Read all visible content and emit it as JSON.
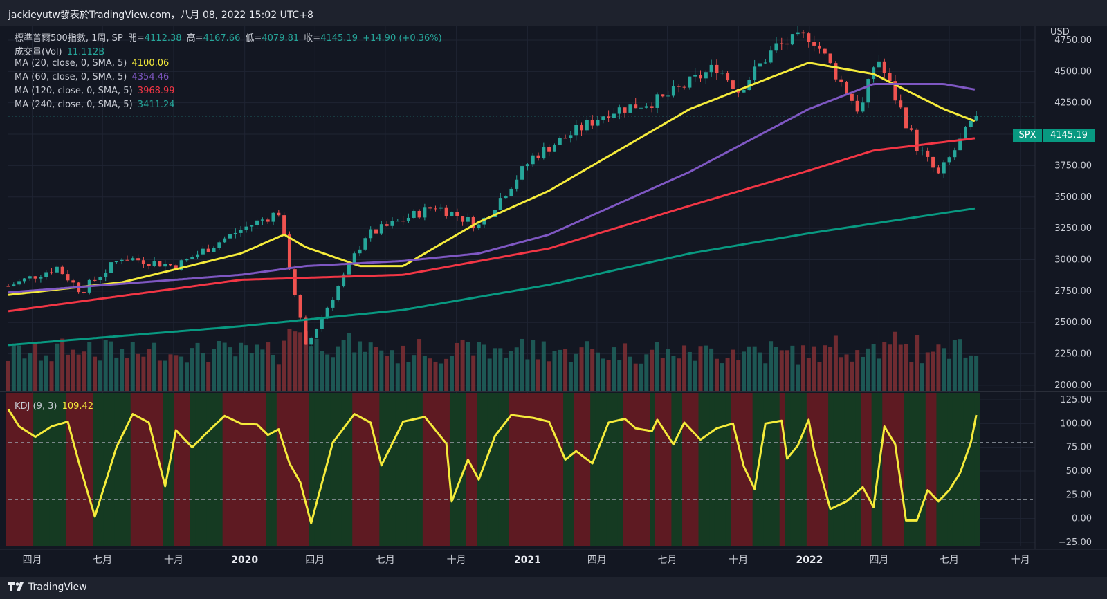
{
  "header": {
    "title": "jackieyutw發表於TradingView.com，八月 08, 2022 15:02 UTC+8"
  },
  "legend": {
    "symbol": "標準普爾500指數, 1周, SP",
    "open_label": "開=",
    "open": "4112.38",
    "high_label": "高=",
    "high": "4167.66",
    "low_label": "低=",
    "low": "4079.81",
    "close_label": "收=",
    "close": "4145.19",
    "change": "+14.90 (+0.36%)",
    "vol_label": "成交量(Vol)",
    "vol": "11.112B",
    "ma20_label": "MA (20, close, 0, SMA, 5)",
    "ma20": "4100.06",
    "ma60_label": "MA (60, close, 0, SMA, 5)",
    "ma60": "4354.46",
    "ma120_label": "MA (120, close, 0, SMA, 5)",
    "ma120": "3968.99",
    "ma240_label": "MA (240, close, 0, SMA, 5)",
    "ma240": "3411.24"
  },
  "kdj_legend": {
    "label": "KDJ (9, 3)",
    "value": "109.42"
  },
  "price_axis": {
    "currency": "USD",
    "ticks": [
      "4750.00",
      "4500.00",
      "4250.00",
      "4000.00",
      "3750.00",
      "3500.00",
      "3250.00",
      "3000.00",
      "2750.00",
      "2500.00",
      "2250.00",
      "2000.00"
    ],
    "symbol_tag": "SPX",
    "last_price": "4145.19"
  },
  "kdj_axis": {
    "ticks": [
      "125.00",
      "100.00",
      "75.00",
      "50.00",
      "25.00",
      "0.00",
      "−25.00"
    ]
  },
  "time_axis": {
    "labels": [
      "四月",
      "七月",
      "十月",
      "2020",
      "四月",
      "七月",
      "十月",
      "2021",
      "四月",
      "七月",
      "十月",
      "2022",
      "四月",
      "七月",
      "十月"
    ]
  },
  "footer": {
    "brand": "TradingView"
  },
  "colors": {
    "background": "#131722",
    "up": "#26a69a",
    "down": "#ef5350",
    "ma20": "#f5eb3b",
    "ma60": "#7e57c2",
    "ma120": "#f23645",
    "ma240": "#089981",
    "kdj": "#f5eb3b",
    "kdj_bg_up": "#153a22",
    "kdj_bg_down": "#5e1a22"
  },
  "chart_data": [
    {
      "type": "candlestick",
      "title": "標準普爾500指數, 1周, SP",
      "ylabel": "USD",
      "ylim": [
        1950,
        4860
      ],
      "x_range": [
        "2019-03-01",
        "2022-10-20"
      ],
      "x_ticks": [
        "四月",
        "七月",
        "十月",
        "2020",
        "四月",
        "七月",
        "十月",
        "2021",
        "四月",
        "七月",
        "十月",
        "2022",
        "四月",
        "七月",
        "十月"
      ],
      "anchors": {
        "dates": [
          "2019-03-01",
          "2019-05-03",
          "2019-06-03",
          "2019-07-26",
          "2019-10-04",
          "2019-12-27",
          "2020-02-14",
          "2020-03-20",
          "2020-06-05",
          "2020-09-04",
          "2020-10-30",
          "2021-01-08",
          "2021-04-16",
          "2021-06-25",
          "2021-09-03",
          "2021-10-01",
          "2021-11-19",
          "2022-01-03",
          "2022-03-08",
          "2022-03-29",
          "2022-05-20",
          "2022-06-17",
          "2022-08-05"
        ],
        "close": [
          2790,
          2940,
          2750,
          3020,
          2950,
          3240,
          3380,
          2300,
          3190,
          3430,
          3270,
          3820,
          4180,
          4280,
          4540,
          4350,
          4700,
          4790,
          4170,
          4630,
          3900,
          3670,
          4145
        ]
      },
      "series": [
        {
          "name": "MA (20, close, 0, SMA, 5)",
          "dates": [
            "2019-03-01",
            "2019-07-26",
            "2019-12-27",
            "2020-02-21",
            "2020-03-20",
            "2020-05-29",
            "2020-07-24",
            "2020-10-30",
            "2021-01-29",
            "2021-07-30",
            "2021-12-31",
            "2022-03-25",
            "2022-06-24",
            "2022-08-05"
          ],
          "values": [
            2720,
            2820,
            3050,
            3200,
            3100,
            2950,
            2950,
            3300,
            3550,
            4200,
            4570,
            4480,
            4200,
            4100
          ]
        },
        {
          "name": "MA (60, close, 0, SMA, 5)",
          "dates": [
            "2019-03-01",
            "2019-12-27",
            "2020-03-20",
            "2020-07-24",
            "2020-10-30",
            "2021-01-29",
            "2021-07-30",
            "2021-12-31",
            "2022-03-25",
            "2022-06-24",
            "2022-08-05"
          ],
          "values": [
            2740,
            2880,
            2950,
            2990,
            3050,
            3200,
            3700,
            4200,
            4400,
            4400,
            4354
          ]
        },
        {
          "name": "MA (120, close, 0, SMA, 5)",
          "dates": [
            "2019-03-01",
            "2019-12-27",
            "2020-07-24",
            "2021-01-29",
            "2021-07-30",
            "2021-12-31",
            "2022-03-25",
            "2022-08-05"
          ],
          "values": [
            2590,
            2840,
            2880,
            3090,
            3430,
            3710,
            3870,
            3969
          ]
        },
        {
          "name": "MA (240, close, 0, SMA, 5)",
          "dates": [
            "2019-03-01",
            "2019-12-27",
            "2020-07-24",
            "2021-01-29",
            "2021-07-30",
            "2021-12-31",
            "2022-08-05"
          ],
          "values": [
            2320,
            2470,
            2600,
            2800,
            3050,
            3210,
            3411
          ]
        }
      ],
      "volume": {
        "name": "成交量(Vol)",
        "last": "11.112B",
        "relative_level_range": [
          0.4,
          1.0
        ]
      }
    },
    {
      "type": "line",
      "title": "KDJ (9, 3)",
      "ylim": [
        -25,
        125
      ],
      "reference_lines": [
        20,
        80
      ],
      "series": [
        {
          "name": "KDJ (9, 3)",
          "dates": [
            "2019-03-01",
            "2019-03-15",
            "2019-04-05",
            "2019-04-26",
            "2019-05-17",
            "2019-05-31",
            "2019-06-21",
            "2019-07-19",
            "2019-08-09",
            "2019-08-30",
            "2019-09-20",
            "2019-10-04",
            "2019-10-25",
            "2019-11-15",
            "2019-12-06",
            "2019-12-27",
            "2020-01-17",
            "2020-01-31",
            "2020-02-14",
            "2020-02-28",
            "2020-03-13",
            "2020-03-27",
            "2020-04-24",
            "2020-05-22",
            "2020-06-12",
            "2020-06-26",
            "2020-07-24",
            "2020-08-21",
            "2020-09-18",
            "2020-09-25",
            "2020-10-16",
            "2020-10-30",
            "2020-11-20",
            "2020-12-11",
            "2021-01-08",
            "2021-01-29",
            "2021-02-19",
            "2021-03-05",
            "2021-03-26",
            "2021-04-16",
            "2021-05-07",
            "2021-05-21",
            "2021-06-11",
            "2021-06-18",
            "2021-07-09",
            "2021-07-23",
            "2021-08-13",
            "2021-09-03",
            "2021-09-24",
            "2021-10-08",
            "2021-10-22",
            "2021-11-05",
            "2021-11-26",
            "2021-12-03",
            "2021-12-17",
            "2021-12-31",
            "2022-01-07",
            "2022-01-28",
            "2022-02-18",
            "2022-03-11",
            "2022-03-25",
            "2022-04-08",
            "2022-04-22",
            "2022-05-06",
            "2022-05-20",
            "2022-06-03",
            "2022-06-17",
            "2022-07-01",
            "2022-07-15",
            "2022-07-29",
            "2022-08-05"
          ],
          "values": [
            115,
            97,
            86,
            97,
            102,
            60,
            2,
            75,
            110,
            101,
            34,
            93,
            75,
            92,
            108,
            100,
            99,
            88,
            94,
            58,
            38,
            -5,
            80,
            110,
            101,
            56,
            102,
            107,
            79,
            18,
            62,
            41,
            87,
            109,
            106,
            102,
            62,
            71,
            58,
            101,
            105,
            95,
            92,
            104,
            78,
            101,
            83,
            95,
            100,
            55,
            31,
            100,
            103,
            63,
            77,
            104,
            72,
            10,
            18,
            33,
            12,
            97,
            78,
            -2,
            -2,
            30,
            18,
            30,
            48,
            80,
            109
          ]
        }
      ],
      "background_bands": {
        "up_color": "#153a22",
        "down_color": "#5e1a22"
      }
    }
  ]
}
